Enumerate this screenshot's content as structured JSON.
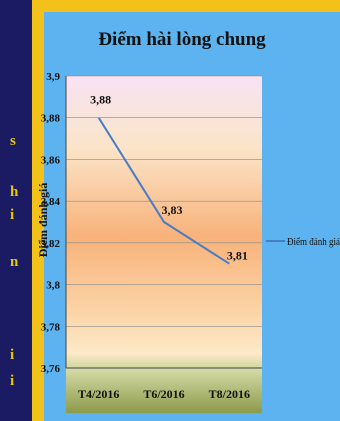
{
  "left_text": [
    {
      "text": "s",
      "top": 133
    },
    {
      "text": "h",
      "top": 184
    },
    {
      "text": "i",
      "top": 207
    },
    {
      "text": "n",
      "top": 254
    },
    {
      "text": "i",
      "top": 347
    },
    {
      "text": "i",
      "top": 373
    }
  ],
  "chart_data": {
    "type": "line",
    "title": "Điểm hài lòng chung",
    "ylabel": "Điểm đánh giá",
    "xlabel": "",
    "categories": [
      "T4/2016",
      "T6/2016",
      "T8/2016"
    ],
    "series": [
      {
        "name": "Điểm đánh giá",
        "values": [
          3.88,
          3.83,
          3.81
        ],
        "labels": [
          "3,88",
          "3,83",
          "3,81"
        ],
        "color": "#4a7cc4"
      }
    ],
    "ylim": [
      3.76,
      3.9
    ],
    "yticks": [
      3.76,
      3.78,
      3.8,
      3.82,
      3.84,
      3.86,
      3.88,
      3.9
    ],
    "ytick_labels": [
      "3,76",
      "3,78",
      "3,8",
      "3,82",
      "3,84",
      "3,86",
      "3,88",
      "3,9"
    ],
    "grid": true,
    "legend_position": "right"
  }
}
